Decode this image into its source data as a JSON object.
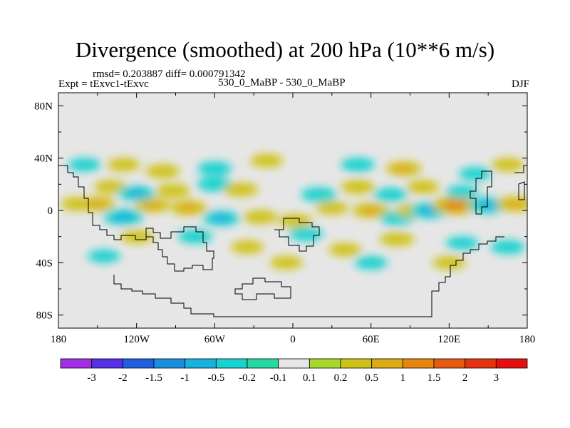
{
  "chart_data": {
    "type": "heatmap",
    "title": "Divergence (smoothed) at 200 hPa (10**6 m/s)",
    "stats_label": "rmsd= 0.203887 diff= 0.000791342",
    "experiment_label": "Expt = tExvc1-tExvc",
    "case_label": "530_0_MaBP - 530_0_MaBP",
    "season_label": "DJF",
    "x_axis": {
      "range": [
        -180,
        180
      ],
      "ticks": [
        {
          "value": -180,
          "label": "180"
        },
        {
          "value": -120,
          "label": "120W"
        },
        {
          "value": -60,
          "label": "60W"
        },
        {
          "value": 0,
          "label": "0"
        },
        {
          "value": 60,
          "label": "60E"
        },
        {
          "value": 120,
          "label": "120E"
        },
        {
          "value": 180,
          "label": "180"
        }
      ]
    },
    "y_axis": {
      "range": [
        -90,
        90
      ],
      "ticks": [
        {
          "value": 80,
          "label": "80N"
        },
        {
          "value": 40,
          "label": "40N"
        },
        {
          "value": 0,
          "label": "0"
        },
        {
          "value": -40,
          "label": "40S"
        },
        {
          "value": -80,
          "label": "80S"
        }
      ]
    },
    "colorbar": {
      "labels": [
        "-3",
        "-2",
        "-1.5",
        "-1",
        "-0.5",
        "-0.2",
        "-0.1",
        "0.1",
        "0.2",
        "0.5",
        "1",
        "1.5",
        "2",
        "3"
      ],
      "colors": [
        "#a22ee6",
        "#5430e6",
        "#1f5fe0",
        "#1a8fde",
        "#18b2de",
        "#18d2cf",
        "#24d9a2",
        "#e6e6e6",
        "#a6d92a",
        "#cfc217",
        "#deaa14",
        "#e6860f",
        "#e85a0f",
        "#e6330f",
        "#e60f0f"
      ]
    },
    "anomalies": [
      {
        "lon": -165,
        "lat": 5,
        "value": 0.4
      },
      {
        "lon": -150,
        "lat": 5,
        "value": 0.5
      },
      {
        "lon": -130,
        "lat": -5,
        "value": -0.8
      },
      {
        "lon": -108,
        "lat": 4,
        "value": 0.5
      },
      {
        "lon": -80,
        "lat": 2,
        "value": 0.6
      },
      {
        "lon": -55,
        "lat": -6,
        "value": -0.6
      },
      {
        "lon": -25,
        "lat": -5,
        "value": 0.4
      },
      {
        "lon": 2,
        "lat": -8,
        "value": 0.4
      },
      {
        "lon": 30,
        "lat": 2,
        "value": 0.3
      },
      {
        "lon": 60,
        "lat": 0,
        "value": 0.6
      },
      {
        "lon": 80,
        "lat": -6,
        "value": -0.4
      },
      {
        "lon": 92,
        "lat": 0,
        "value": 0.4
      },
      {
        "lon": 105,
        "lat": 0,
        "value": -0.8
      },
      {
        "lon": 125,
        "lat": 4,
        "value": 1.3
      },
      {
        "lon": 150,
        "lat": 4,
        "value": -0.8
      },
      {
        "lon": 170,
        "lat": 5,
        "value": 0.6
      },
      {
        "lon": -140,
        "lat": 18,
        "value": 0.3
      },
      {
        "lon": -120,
        "lat": 13,
        "value": -0.6
      },
      {
        "lon": -92,
        "lat": 15,
        "value": 0.4
      },
      {
        "lon": -60,
        "lat": 20,
        "value": -0.5
      },
      {
        "lon": -40,
        "lat": 16,
        "value": 0.4
      },
      {
        "lon": 20,
        "lat": 12,
        "value": -0.5
      },
      {
        "lon": 50,
        "lat": 18,
        "value": 0.4
      },
      {
        "lon": 75,
        "lat": 12,
        "value": -0.4
      },
      {
        "lon": 100,
        "lat": 18,
        "value": 0.3
      },
      {
        "lon": 130,
        "lat": 14,
        "value": -0.3
      },
      {
        "lon": -160,
        "lat": 35,
        "value": -0.3
      },
      {
        "lon": -130,
        "lat": 35,
        "value": 0.3
      },
      {
        "lon": -100,
        "lat": 30,
        "value": 0.4
      },
      {
        "lon": -60,
        "lat": 32,
        "value": -0.4
      },
      {
        "lon": -20,
        "lat": 38,
        "value": 0.3
      },
      {
        "lon": 50,
        "lat": 35,
        "value": -0.4
      },
      {
        "lon": 85,
        "lat": 32,
        "value": 0.5
      },
      {
        "lon": 140,
        "lat": 28,
        "value": -0.3
      },
      {
        "lon": 165,
        "lat": 35,
        "value": 0.3
      },
      {
        "lon": -120,
        "lat": -20,
        "value": 0.3
      },
      {
        "lon": -75,
        "lat": -20,
        "value": -0.4
      },
      {
        "lon": -35,
        "lat": -28,
        "value": 0.3
      },
      {
        "lon": 10,
        "lat": -18,
        "value": -0.4
      },
      {
        "lon": 40,
        "lat": -30,
        "value": 0.3
      },
      {
        "lon": 80,
        "lat": -22,
        "value": 0.4
      },
      {
        "lon": 130,
        "lat": -25,
        "value": -0.3
      },
      {
        "lon": 165,
        "lat": -28,
        "value": -0.4
      },
      {
        "lon": -145,
        "lat": -35,
        "value": -0.3
      },
      {
        "lon": -5,
        "lat": -40,
        "value": 0.3
      },
      {
        "lon": 60,
        "lat": -40,
        "value": -0.3
      },
      {
        "lon": 120,
        "lat": -40,
        "value": 0.3
      }
    ]
  }
}
